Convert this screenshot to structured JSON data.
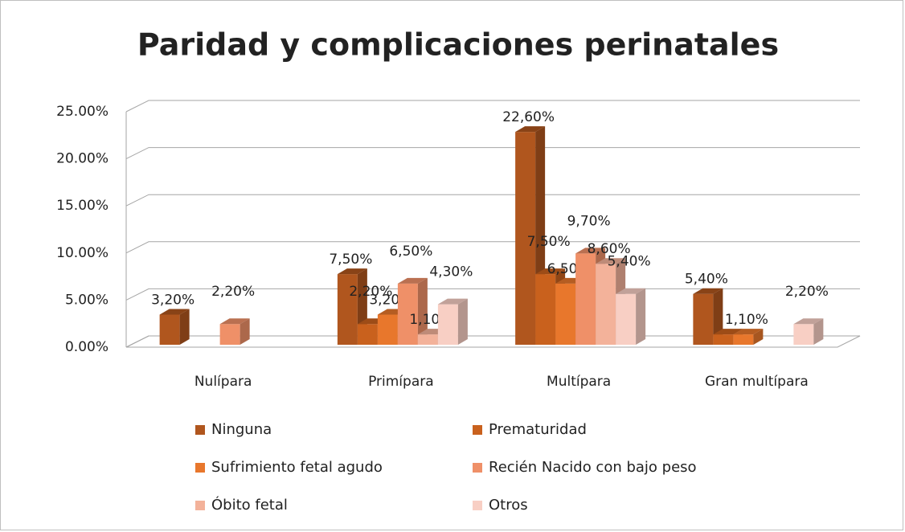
{
  "chart_data": {
    "type": "bar3d",
    "title": "Paridad y complicaciones perinatales",
    "categories": [
      "Nulípara",
      "Primípara",
      "Multípara",
      "Gran multípara"
    ],
    "series": [
      {
        "name": "Ninguna",
        "color": "#b0561e",
        "values": [
          3.2,
          7.5,
          22.6,
          5.4
        ],
        "value_labels": [
          "3,20%",
          "7,50%",
          "22,60%",
          "5,40%"
        ]
      },
      {
        "name": "Prematuridad",
        "color": "#c9611d",
        "values": [
          null,
          2.2,
          7.5,
          1.1
        ],
        "value_labels": [
          null,
          "2,20%",
          "7,50%",
          null
        ]
      },
      {
        "name": "Sufrimiento fetal agudo",
        "color": "#e8772c",
        "values": [
          null,
          3.2,
          6.5,
          1.1
        ],
        "value_labels": [
          null,
          "3,20%",
          "6,50%",
          "1,10%"
        ]
      },
      {
        "name": "Recién Nacido con bajo peso",
        "color": "#ef9068",
        "values": [
          2.2,
          6.5,
          9.7,
          null
        ],
        "value_labels": [
          "2,20%",
          "6,50%",
          "9,70%",
          null
        ]
      },
      {
        "name": "Óbito fetal",
        "color": "#f3b29a",
        "values": [
          null,
          1.1,
          8.6,
          null
        ],
        "value_labels": [
          null,
          "1,10%",
          "8,60%",
          null
        ]
      },
      {
        "name": "Otros",
        "color": "#f8cfc4",
        "values": [
          null,
          4.3,
          5.4,
          2.2
        ],
        "value_labels": [
          null,
          "4,30%",
          "5,40%",
          "2,20%"
        ]
      }
    ],
    "ylim": [
      0,
      25
    ],
    "yticks": [
      {
        "value": 0,
        "label": "0.00%"
      },
      {
        "value": 5,
        "label": "5.00%"
      },
      {
        "value": 10,
        "label": "10.00%"
      },
      {
        "value": 15,
        "label": "15.00%"
      },
      {
        "value": 20,
        "label": "20.00%"
      },
      {
        "value": 25,
        "label": "25.00%"
      }
    ],
    "grid": true,
    "legend": "bottom"
  }
}
